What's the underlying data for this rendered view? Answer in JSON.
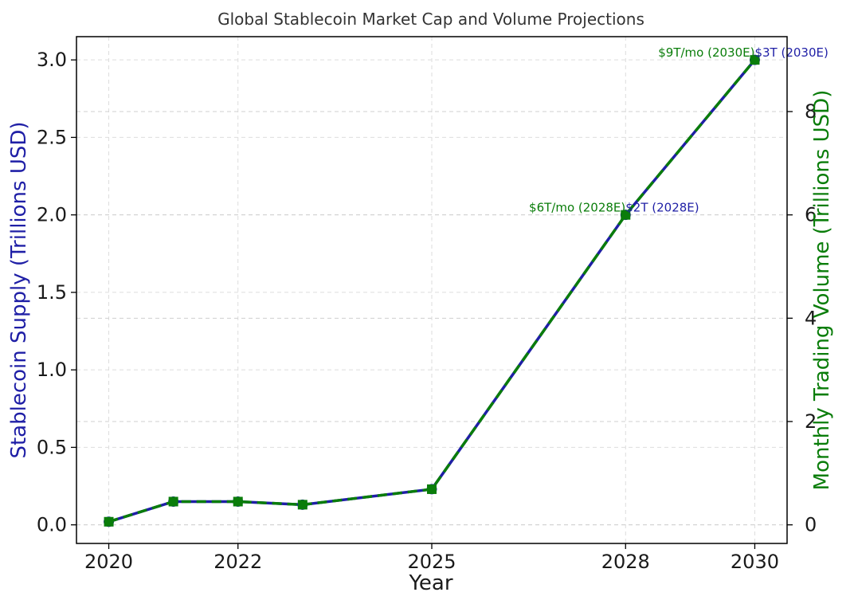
{
  "chart_data": {
    "type": "line",
    "title": "Global Stablecoin Market Cap and Volume Projections",
    "xlabel": "Year",
    "ylabel_left": "Stablecoin Supply (Trillions USD)",
    "ylabel_right": "Monthly Trading Volume (Trillions USD)",
    "x": [
      2020,
      2021,
      2022,
      2023,
      2025,
      2028,
      2030
    ],
    "x_ticks": [
      "2020",
      "2022",
      "2025",
      "2028",
      "2030"
    ],
    "xlim": [
      2019.5,
      2030.5
    ],
    "ylim_left": [
      -0.12,
      3.15
    ],
    "ylim_right": [
      -0.36,
      9.45
    ],
    "y_ticks_left": [
      "0.0",
      "0.5",
      "1.0",
      "1.5",
      "2.0",
      "2.5",
      "3.0"
    ],
    "y_ticks_right": [
      "0",
      "2",
      "4",
      "6",
      "8"
    ],
    "grid": true,
    "series": [
      {
        "axis": "left",
        "color": "#1f1fa6",
        "linestyle": "solid",
        "marker": "circle",
        "values": [
          0.02,
          0.15,
          0.15,
          0.13,
          0.23,
          2.0,
          3.0
        ]
      },
      {
        "axis": "right",
        "color": "#0a7d0a",
        "linestyle": "dashed",
        "marker": "square",
        "values": [
          0.06,
          0.45,
          0.45,
          0.39,
          0.69,
          6.0,
          9.0
        ]
      }
    ],
    "annotations": [
      {
        "text": "$6T/mo (2028E)",
        "color": "#0a7d0a",
        "x": 2028,
        "axis": "right",
        "y": 6.0,
        "anchor": "end"
      },
      {
        "text": "$2T (2028E)",
        "color": "#1f1fa6",
        "x": 2028,
        "axis": "left",
        "y": 2.0,
        "anchor": "start"
      },
      {
        "text": "$9T/mo (2030E)",
        "color": "#0a7d0a",
        "x": 2030,
        "axis": "right",
        "y": 9.0,
        "anchor": "end"
      },
      {
        "text": "$3T (2030E)",
        "color": "#1f1fa6",
        "x": 2030,
        "axis": "left",
        "y": 3.0,
        "anchor": "start"
      }
    ]
  }
}
